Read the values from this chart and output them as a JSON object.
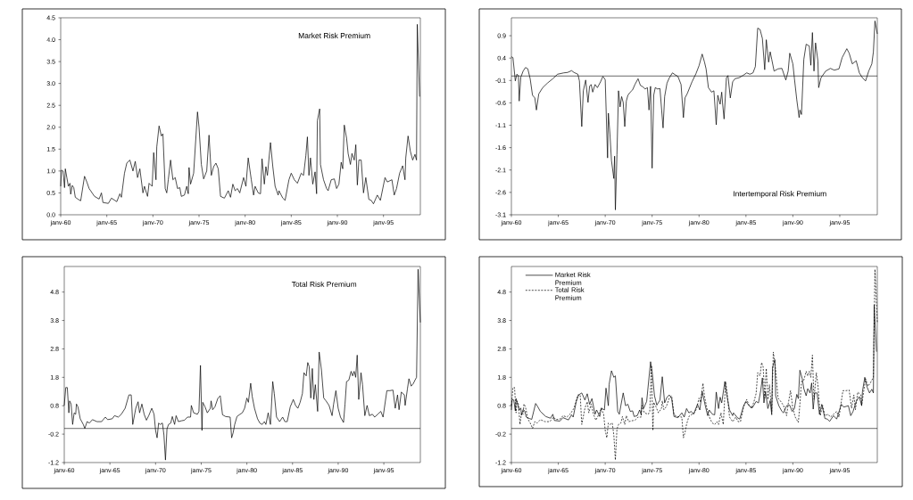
{
  "chart_data": [
    {
      "type": "line",
      "title": "Market Risk Premium",
      "xlim": [
        "1960-01",
        "1999-01"
      ],
      "ylim": [
        0,
        4.5
      ],
      "xticks": [
        {
          "value": "1960-01",
          "label": "janv-60"
        },
        {
          "value": "1965-01",
          "label": "janv-65"
        },
        {
          "value": "1970-01",
          "label": "janv-70"
        },
        {
          "value": "1975-01",
          "label": "janv-75"
        },
        {
          "value": "1980-01",
          "label": "janv-80"
        },
        {
          "value": "1985-01",
          "label": "janv-85"
        },
        {
          "value": "1990-01",
          "label": "janv-90"
        },
        {
          "value": "1995-01",
          "label": "janv-95"
        }
      ],
      "yticks": [
        {
          "value": 0,
          "label": "0.0"
        },
        0.5,
        {
          "value": 1,
          "label": "1.0"
        },
        1.5,
        {
          "value": 2,
          "label": "2.0"
        },
        2.5,
        {
          "value": 3,
          "label": "3.0"
        },
        3.5,
        {
          "value": 4,
          "label": "4.0"
        },
        4.5
      ],
      "series": [
        {
          "color": "#000000",
          "x": [
            "1960-01",
            "1960-02",
            "1960-04",
            "1960-06",
            "1960-07",
            "1960-09",
            "1960-11",
            "1961-01",
            "1961-02",
            "1961-04",
            "1961-06",
            "1961-08",
            "1961-12",
            "1962-03",
            "1962-08",
            "1962-11",
            "1963-02",
            "1963-09",
            "1964-03",
            "1964-06",
            "1964-08",
            "1965-03",
            "1965-07",
            "1966-02",
            "1966-06",
            "1966-08",
            "1966-12",
            "1967-03",
            "1967-07",
            "1967-11",
            "1968-02",
            "1968-05",
            "1968-08",
            "1968-12",
            "1969-02",
            "1969-06",
            "1969-08",
            "1969-12",
            "1970-02",
            "1970-05",
            "1970-06",
            "1970-09",
            "1970-12",
            "1971-02",
            "1971-05",
            "1971-07",
            "1971-09",
            "1971-12",
            "1972-03",
            "1972-06",
            "1972-09",
            "1972-12",
            "1973-02",
            "1973-06",
            "1973-09",
            "1973-11",
            "1973-12",
            "1974-02",
            "1974-06",
            "1974-11",
            "1975-01",
            "1975-04",
            "1975-07",
            "1975-11",
            "1976-02",
            "1976-05",
            "1976-08",
            "1976-11",
            "1977-02",
            "1977-05",
            "1977-10",
            "1978-03",
            "1978-06",
            "1978-09",
            "1978-12",
            "1979-03",
            "1979-06",
            "1979-11",
            "1980-02",
            "1980-05",
            "1980-09",
            "1980-12",
            "1981-02",
            "1981-06",
            "1981-09",
            "1981-11",
            "1982-02",
            "1982-04",
            "1982-06",
            "1982-10",
            "1983-01",
            "1983-04",
            "1983-08",
            "1983-09",
            "1984-02",
            "1984-05",
            "1984-10",
            "1985-01",
            "1985-05",
            "1985-09",
            "1986-02",
            "1986-05",
            "1986-08",
            "1986-10",
            "1986-12",
            "1987-02",
            "1987-05",
            "1987-08",
            "1987-10",
            "1987-11",
            "1988-02",
            "1988-03",
            "1988-07",
            "1988-11",
            "1989-01",
            "1989-05",
            "1989-09",
            "1989-12",
            "1990-03",
            "1990-06",
            "1990-08",
            "1990-10",
            "1991-01",
            "1991-03",
            "1991-06",
            "1991-08",
            "1991-11",
            "1992-01",
            "1992-03",
            "1992-05",
            "1992-08",
            "1992-11",
            "1993-02",
            "1993-06",
            "1993-09",
            "1993-12",
            "1994-05",
            "1994-09",
            "1995-03",
            "1995-06",
            "1995-12",
            "1996-03",
            "1996-06",
            "1996-10",
            "1997-02",
            "1997-05",
            "1997-06",
            "1997-09",
            "1997-12",
            "1998-03",
            "1998-06",
            "1998-08",
            "1998-09",
            "1998-12"
          ],
          "values": [
            0.65,
            1.02,
            1.0,
            0.62,
            1.05,
            0.85,
            0.65,
            0.72,
            0.47,
            0.67,
            0.62,
            0.4,
            0.35,
            0.32,
            0.88,
            0.75,
            0.6,
            0.42,
            0.36,
            0.5,
            0.28,
            0.26,
            0.38,
            0.3,
            0.48,
            0.4,
            0.95,
            1.18,
            1.25,
            1.0,
            1.22,
            0.85,
            1.05,
            0.5,
            0.65,
            0.42,
            0.72,
            0.65,
            1.42,
            0.8,
            1.55,
            2.03,
            1.8,
            1.85,
            0.6,
            0.5,
            0.8,
            1.25,
            0.8,
            0.85,
            0.6,
            0.62,
            0.42,
            0.45,
            0.65,
            0.48,
            1.08,
            0.7,
            0.95,
            2.35,
            2.0,
            1.15,
            0.82,
            1.0,
            1.82,
            0.9,
            1.1,
            1.18,
            1.05,
            0.42,
            0.38,
            0.55,
            0.4,
            0.7,
            0.55,
            0.6,
            0.5,
            0.85,
            0.65,
            1.3,
            0.8,
            0.45,
            0.65,
            0.5,
            0.48,
            1.28,
            0.7,
            1.1,
            0.9,
            1.65,
            1.1,
            0.65,
            0.45,
            0.55,
            0.38,
            0.33,
            0.8,
            0.95,
            0.8,
            0.72,
            0.95,
            0.9,
            1.35,
            1.78,
            0.9,
            1.3,
            0.7,
            0.98,
            0.48,
            2.15,
            2.42,
            1.15,
            0.8,
            0.6,
            0.55,
            0.8,
            0.82,
            0.6,
            0.7,
            1.2,
            1.05,
            2.05,
            1.75,
            1.4,
            1.15,
            1.4,
            1.25,
            1.6,
            0.68,
            1.25,
            1.25,
            0.5,
            0.85,
            0.35,
            0.33,
            0.25,
            0.45,
            0.33,
            0.85,
            0.75,
            0.8,
            0.45,
            0.6,
            0.95,
            1.12,
            0.8,
            1.3,
            1.8,
            1.45,
            1.25,
            1.38,
            1.25,
            4.35,
            2.7
          ]
        }
      ]
    },
    {
      "type": "line",
      "title": "Intertemporal Risk Premium",
      "xlim": [
        "1960-01",
        "1999-01"
      ],
      "ylim": [
        -3.1,
        1.3
      ],
      "xticks": [
        {
          "value": "1960-01",
          "label": "janv-60"
        },
        {
          "value": "1965-01",
          "label": "janv-65"
        },
        {
          "value": "1970-01",
          "label": "janv-70"
        },
        {
          "value": "1975-01",
          "label": "janv-75"
        },
        {
          "value": "1980-01",
          "label": "janv-80"
        },
        {
          "value": "1985-01",
          "label": "janv-85"
        },
        {
          "value": "1990-01",
          "label": "janv-90"
        },
        {
          "value": "1995-01",
          "label": "janv-95"
        }
      ],
      "yticks": [
        -3.1,
        -2.6,
        -2.1,
        -1.6,
        -1.1,
        -0.6,
        -0.1,
        0.4,
        0.9
      ],
      "ref_lines": [
        {
          "axis": "y",
          "value": 0
        }
      ],
      "series": [
        {
          "color": "#000000",
          "x": [
            "1960-01",
            "1960-03",
            "1960-06",
            "1960-08",
            "1960-10",
            "1960-11",
            "1961-01",
            "1961-04",
            "1961-07",
            "1961-10",
            "1962-01",
            "1962-04",
            "1962-07",
            "1962-09",
            "1962-12",
            "1963-05",
            "1963-11",
            "1964-06",
            "1964-12",
            "1965-08",
            "1966-01",
            "1966-06",
            "1966-09",
            "1967-02",
            "1967-04",
            "1967-07",
            "1967-09",
            "1967-12",
            "1968-03",
            "1968-05",
            "1968-07",
            "1968-09",
            "1968-12",
            "1969-03",
            "1969-07",
            "1969-10",
            "1970-01",
            "1970-04",
            "1970-05",
            "1970-07",
            "1970-09",
            "1970-12",
            "1971-01",
            "1971-02",
            "1971-04",
            "1971-06",
            "1971-08",
            "1971-10",
            "1971-12",
            "1972-02",
            "1972-04",
            "1972-06",
            "1972-09",
            "1972-12",
            "1973-03",
            "1973-07",
            "1973-10",
            "1974-01",
            "1974-04",
            "1974-07",
            "1974-09",
            "1974-11",
            "1975-01",
            "1975-03",
            "1975-05",
            "1975-08",
            "1975-11",
            "1976-03",
            "1976-05",
            "1976-08",
            "1976-11",
            "1977-03",
            "1977-07",
            "1977-10",
            "1978-02",
            "1978-05",
            "1978-07",
            "1978-10",
            "1979-04",
            "1979-09",
            "1980-01",
            "1980-05",
            "1980-08",
            "1980-10",
            "1981-01",
            "1981-05",
            "1981-08",
            "1981-11",
            "1982-01",
            "1982-04",
            "1982-06",
            "1982-07",
            "1982-09",
            "1982-12",
            "1983-02",
            "1983-05",
            "1983-08",
            "1983-11",
            "1984-04",
            "1984-09",
            "1985-02",
            "1985-06",
            "1985-10",
            "1986-01",
            "1986-04",
            "1986-07",
            "1986-10",
            "1987-01",
            "1987-03",
            "1987-06",
            "1987-08",
            "1987-10",
            "1988-01",
            "1988-06",
            "1988-11",
            "1989-04",
            "1989-07",
            "1989-09",
            "1990-01",
            "1990-03",
            "1990-06",
            "1990-09",
            "1990-10",
            "1990-12",
            "1991-03",
            "1991-06",
            "1991-10",
            "1991-12",
            "1992-02",
            "1992-04",
            "1992-06",
            "1992-09",
            "1992-10",
            "1993-01",
            "1993-07",
            "1994-01",
            "1994-06",
            "1994-12",
            "1995-04",
            "1995-10",
            "1996-01",
            "1996-05",
            "1996-10",
            "1997-02",
            "1997-06",
            "1997-10",
            "1998-02",
            "1998-06",
            "1998-08",
            "1998-10",
            "1999-01"
          ],
          "values": [
            0.43,
            0.41,
            -0.11,
            0.04,
            0.01,
            -0.56,
            -0.03,
            0.11,
            0.19,
            0.16,
            -0.06,
            -0.43,
            -0.49,
            -0.76,
            -0.4,
            -0.26,
            -0.16,
            -0.06,
            0.04,
            0.07,
            0.08,
            0.12,
            0.08,
            0.04,
            -0.11,
            -1.13,
            -0.33,
            -0.09,
            -0.59,
            -0.23,
            -0.19,
            -0.36,
            -0.19,
            -0.26,
            -0.13,
            -0.01,
            -0.08,
            -1.83,
            -0.83,
            -1.29,
            -1.89,
            -2.29,
            -1.79,
            -2.99,
            -1.76,
            -0.33,
            -0.69,
            -0.46,
            -0.59,
            -1.13,
            -0.56,
            -0.43,
            -0.36,
            -0.31,
            -0.19,
            -0.06,
            -0.21,
            -0.24,
            -0.29,
            -0.26,
            -0.76,
            -0.23,
            -2.06,
            -0.43,
            -0.26,
            -0.29,
            -0.28,
            -1.16,
            -0.46,
            -0.16,
            -0.04,
            0.07,
            0.02,
            -0.01,
            -0.19,
            -0.93,
            -0.49,
            -0.39,
            -0.13,
            0.05,
            0.23,
            0.49,
            0.31,
            0.16,
            -0.26,
            -0.36,
            -0.33,
            -1.09,
            -0.43,
            -0.63,
            -0.36,
            -0.59,
            -0.96,
            -0.04,
            0.01,
            -0.49,
            -0.13,
            -0.06,
            -0.04,
            0.01,
            0.07,
            0.04,
            0.07,
            0.21,
            1.07,
            1.04,
            0.84,
            0.14,
            0.81,
            0.31,
            0.54,
            0.37,
            0.11,
            0.16,
            0.17,
            -0.09,
            0.11,
            0.51,
            0.27,
            -0.06,
            -0.53,
            -0.93,
            -0.76,
            -0.86,
            0.37,
            0.71,
            0.67,
            0.24,
            0.97,
            0.11,
            0.74,
            0.34,
            -0.26,
            -0.04,
            0.11,
            0.17,
            0.13,
            0.16,
            0.41,
            0.61,
            0.51,
            0.27,
            0.34,
            0.07,
            -0.04,
            -0.11,
            0.11,
            0.27,
            0.54,
            1.23,
            0.94
          ]
        }
      ]
    },
    {
      "type": "line",
      "title": "Total Risk Premium",
      "xlim": [
        "1960-01",
        "1999-01"
      ],
      "ylim": [
        -1.2,
        5.7
      ],
      "xticks": [
        {
          "value": "1960-01",
          "label": "janv-60"
        },
        {
          "value": "1965-01",
          "label": "janv-65"
        },
        {
          "value": "1970-01",
          "label": "janv-70"
        },
        {
          "value": "1975-01",
          "label": "janv-75"
        },
        {
          "value": "1980-01",
          "label": "janv-80"
        },
        {
          "value": "1985-01",
          "label": "janv-85"
        },
        {
          "value": "1990-01",
          "label": "janv-90"
        },
        {
          "value": "1995-01",
          "label": "janv-95"
        }
      ],
      "yticks": [
        -1.2,
        -0.2,
        0.8,
        1.8,
        2.8,
        3.8,
        4.8
      ],
      "ref_lines": [
        {
          "axis": "y",
          "value": 0
        }
      ],
      "series": [
        {
          "color": "#000000",
          "x": [
            "1960-01",
            "1960-03",
            "1960-05",
            "1960-07",
            "1960-08",
            "1960-10",
            "1960-12",
            "1961-02",
            "1961-04",
            "1961-05",
            "1961-07",
            "1961-10",
            "1962-02",
            "1962-04",
            "1962-07",
            "1962-10",
            "1963-02",
            "1963-08",
            "1964-02",
            "1964-07",
            "1964-10",
            "1965-04",
            "1965-07",
            "1965-12",
            "1966-04",
            "1966-09",
            "1967-02",
            "1967-05",
            "1967-07",
            "1967-11",
            "1968-02",
            "1968-04",
            "1968-07",
            "1968-10",
            "1969-01",
            "1969-04",
            "1969-08",
            "1969-11",
            "1970-01",
            "1970-03",
            "1970-05",
            "1970-07",
            "1970-10",
            "1970-12",
            "1971-02",
            "1971-04",
            "1971-06",
            "1971-09",
            "1971-11",
            "1972-02",
            "1972-04",
            "1972-07",
            "1972-11",
            "1973-03",
            "1973-07",
            "1973-11",
            "1973-12",
            "1974-03",
            "1974-08",
            "1974-10",
            "1974-12",
            "1975-02",
            "1975-03",
            "1975-06",
            "1975-09",
            "1976-01",
            "1976-02",
            "1976-04",
            "1976-07",
            "1976-11",
            "1977-02",
            "1977-05",
            "1977-09",
            "1978-03",
            "1978-05",
            "1978-07",
            "1978-09",
            "1978-12",
            "1979-04",
            "1979-07",
            "1979-10",
            "1980-01",
            "1980-03",
            "1980-06",
            "1980-08",
            "1980-11",
            "1981-03",
            "1981-06",
            "1981-09",
            "1981-12",
            "1982-02",
            "1982-05",
            "1982-08",
            "1982-11",
            "1983-01",
            "1983-04",
            "1983-08",
            "1983-12",
            "1984-03",
            "1984-06",
            "1984-10",
            "1985-02",
            "1985-05",
            "1985-08",
            "1985-11",
            "1986-02",
            "1986-04",
            "1986-07",
            "1986-09",
            "1986-11",
            "1987-01",
            "1987-03",
            "1987-05",
            "1987-07",
            "1987-10",
            "1987-12",
            "1988-03",
            "1988-06",
            "1988-09",
            "1989-01",
            "1989-05",
            "1989-07",
            "1989-10",
            "1990-01",
            "1990-04",
            "1990-08",
            "1990-10",
            "1990-12",
            "1991-03",
            "1991-06",
            "1991-08",
            "1991-10",
            "1991-12",
            "1992-02",
            "1992-04",
            "1992-07",
            "1992-09",
            "1992-12",
            "1993-03",
            "1993-06",
            "1993-10",
            "1994-01",
            "1994-05",
            "1994-09",
            "1994-12",
            "1995-05",
            "1995-09",
            "1996-01",
            "1996-04",
            "1996-07",
            "1996-09",
            "1996-12",
            "1997-04",
            "1997-05",
            "1997-08",
            "1997-10",
            "1998-01",
            "1998-04",
            "1998-05",
            "1998-08",
            "1998-10",
            "1999-01"
          ],
          "values": [
            0.81,
            1.44,
            1.44,
            0.55,
            0.97,
            0.86,
            0.14,
            0.55,
            0.5,
            0.86,
            0.76,
            0.34,
            0.14,
            0.0,
            0.24,
            0.19,
            0.31,
            0.24,
            0.24,
            0.4,
            0.31,
            0.34,
            0.45,
            0.4,
            0.5,
            0.71,
            1.18,
            1.18,
            0.14,
            0.71,
            0.94,
            0.55,
            0.86,
            0.5,
            0.29,
            0.45,
            0.71,
            0.5,
            -0.07,
            -0.33,
            0.19,
            0.14,
            0.19,
            -0.23,
            -1.11,
            -0.02,
            0.14,
            0.19,
            0.42,
            0.14,
            0.45,
            0.24,
            0.27,
            0.29,
            0.4,
            0.4,
            0.81,
            0.55,
            0.5,
            0.6,
            2.22,
            -0.07,
            0.92,
            0.76,
            0.55,
            0.71,
            0.97,
            0.66,
            0.76,
            1.07,
            1.15,
            0.48,
            0.42,
            0.4,
            -0.33,
            -0.15,
            0.14,
            0.42,
            0.5,
            0.55,
            0.71,
            1.07,
            0.92,
            1.59,
            1.13,
            0.71,
            0.34,
            0.19,
            0.14,
            0.24,
            0.14,
            0.55,
            0.14,
            1.65,
            1.23,
            0.4,
            0.24,
            0.4,
            0.24,
            0.24,
            0.76,
            1.02,
            0.81,
            0.71,
            0.92,
            1.23,
            1.96,
            1.85,
            2.32,
            2.17,
            1.07,
            2.11,
            1.02,
            1.54,
            0.6,
            2.69,
            2.06,
            1.07,
            0.97,
            0.81,
            0.45,
            0.86,
            1.33,
            0.71,
            0.4,
            0.21,
            0.86,
            1.65,
            1.7,
            2.01,
            1.85,
            2.01,
            1.8,
            2.58,
            1.02,
            1.96,
            1.54,
            0.45,
            0.81,
            0.45,
            0.5,
            0.4,
            0.5,
            0.6,
            0.4,
            1.33,
            1.33,
            1.35,
            0.71,
            1.18,
            0.66,
            1.28,
            1.18,
            0.81,
            1.39,
            1.75,
            1.49,
            1.59,
            1.65,
            1.8,
            5.6,
            3.73
          ]
        }
      ]
    },
    {
      "type": "line",
      "xlim": [
        "1960-01",
        "1999-01"
      ],
      "ylim": [
        -1.2,
        5.7
      ],
      "legend": "top left",
      "xticks": [
        {
          "value": "1960-01",
          "label": "janv-60"
        },
        {
          "value": "1965-01",
          "label": "janv-65"
        },
        {
          "value": "1970-01",
          "label": "janv-70"
        },
        {
          "value": "1975-01",
          "label": "janv-75"
        },
        {
          "value": "1980-01",
          "label": "janv-80"
        },
        {
          "value": "1985-01",
          "label": "janv-85"
        },
        {
          "value": "1990-01",
          "label": "janv-90"
        },
        {
          "value": "1995-01",
          "label": "janv-95"
        }
      ],
      "yticks": [
        -1.2,
        -0.2,
        0.8,
        1.8,
        2.8,
        3.8,
        4.8
      ],
      "ref_lines": [
        {
          "axis": "y",
          "value": 0
        }
      ],
      "series": [
        {
          "name": "Market Risk Premium",
          "color": "#000000",
          "line_style": "solid",
          "x": [
            "1960-01",
            "1960-02",
            "1960-04",
            "1960-06",
            "1960-07",
            "1960-09",
            "1960-11",
            "1961-01",
            "1961-02",
            "1961-04",
            "1961-06",
            "1961-08",
            "1961-12",
            "1962-03",
            "1962-08",
            "1962-11",
            "1963-02",
            "1963-09",
            "1964-03",
            "1964-06",
            "1964-08",
            "1965-03",
            "1965-07",
            "1966-02",
            "1966-06",
            "1966-08",
            "1966-12",
            "1967-03",
            "1967-07",
            "1967-11",
            "1968-02",
            "1968-05",
            "1968-08",
            "1968-12",
            "1969-02",
            "1969-06",
            "1969-08",
            "1969-12",
            "1970-02",
            "1970-05",
            "1970-06",
            "1970-09",
            "1970-12",
            "1971-02",
            "1971-05",
            "1971-07",
            "1971-09",
            "1971-12",
            "1972-03",
            "1972-06",
            "1972-09",
            "1972-12",
            "1973-02",
            "1973-06",
            "1973-09",
            "1973-11",
            "1973-12",
            "1974-02",
            "1974-06",
            "1974-11",
            "1975-01",
            "1975-04",
            "1975-07",
            "1975-11",
            "1976-02",
            "1976-05",
            "1976-08",
            "1976-11",
            "1977-02",
            "1977-05",
            "1977-10",
            "1978-03",
            "1978-06",
            "1978-09",
            "1978-12",
            "1979-03",
            "1979-06",
            "1979-11",
            "1980-02",
            "1980-05",
            "1980-09",
            "1980-12",
            "1981-02",
            "1981-06",
            "1981-09",
            "1981-11",
            "1982-02",
            "1982-04",
            "1982-06",
            "1982-10",
            "1983-01",
            "1983-04",
            "1983-08",
            "1983-09",
            "1984-02",
            "1984-05",
            "1984-10",
            "1985-01",
            "1985-05",
            "1985-09",
            "1986-02",
            "1986-05",
            "1986-08",
            "1986-10",
            "1986-12",
            "1987-02",
            "1987-05",
            "1987-08",
            "1987-10",
            "1987-11",
            "1988-02",
            "1988-03",
            "1988-07",
            "1988-11",
            "1989-01",
            "1989-05",
            "1989-09",
            "1989-12",
            "1990-03",
            "1990-06",
            "1990-08",
            "1990-10",
            "1991-01",
            "1991-03",
            "1991-06",
            "1991-08",
            "1991-11",
            "1992-01",
            "1992-03",
            "1992-05",
            "1992-08",
            "1992-11",
            "1993-02",
            "1993-06",
            "1993-09",
            "1993-12",
            "1994-05",
            "1994-09",
            "1995-03",
            "1995-06",
            "1995-12",
            "1996-03",
            "1996-06",
            "1996-10",
            "1997-02",
            "1997-05",
            "1997-06",
            "1997-09",
            "1997-12",
            "1998-03",
            "1998-06",
            "1998-08",
            "1998-09",
            "1998-12"
          ],
          "values": [
            0.65,
            1.02,
            1.0,
            0.62,
            1.05,
            0.85,
            0.65,
            0.72,
            0.47,
            0.67,
            0.62,
            0.4,
            0.35,
            0.32,
            0.88,
            0.75,
            0.6,
            0.42,
            0.36,
            0.5,
            0.28,
            0.26,
            0.38,
            0.3,
            0.48,
            0.4,
            0.95,
            1.18,
            1.25,
            1.0,
            1.22,
            0.85,
            1.05,
            0.5,
            0.65,
            0.42,
            0.72,
            0.65,
            1.42,
            0.8,
            1.55,
            2.03,
            1.8,
            1.85,
            0.6,
            0.5,
            0.8,
            1.25,
            0.8,
            0.85,
            0.6,
            0.62,
            0.42,
            0.45,
            0.65,
            0.48,
            1.08,
            0.7,
            0.95,
            2.35,
            2.0,
            1.15,
            0.82,
            1.0,
            1.82,
            0.9,
            1.1,
            1.18,
            1.05,
            0.42,
            0.38,
            0.55,
            0.4,
            0.7,
            0.55,
            0.6,
            0.5,
            0.85,
            0.65,
            1.3,
            0.8,
            0.45,
            0.65,
            0.5,
            0.48,
            1.28,
            0.7,
            1.1,
            0.9,
            1.65,
            1.1,
            0.65,
            0.45,
            0.55,
            0.38,
            0.33,
            0.8,
            0.95,
            0.8,
            0.72,
            0.95,
            0.9,
            1.35,
            1.78,
            0.9,
            1.3,
            0.7,
            0.98,
            0.48,
            2.15,
            2.42,
            1.15,
            0.8,
            0.6,
            0.55,
            0.8,
            0.82,
            0.6,
            0.7,
            1.2,
            1.05,
            2.05,
            1.75,
            1.4,
            1.15,
            1.4,
            1.25,
            1.6,
            0.68,
            1.25,
            1.25,
            0.5,
            0.85,
            0.35,
            0.33,
            0.25,
            0.45,
            0.33,
            0.85,
            0.75,
            0.8,
            0.45,
            0.6,
            0.95,
            1.12,
            0.8,
            1.3,
            1.8,
            1.45,
            1.25,
            1.38,
            1.25,
            4.35,
            2.7
          ]
        },
        {
          "name": "Total Risk Premium",
          "color": "#000000",
          "line_style": "dashed",
          "x": [
            "1960-01",
            "1960-03",
            "1960-05",
            "1960-07",
            "1960-08",
            "1960-10",
            "1960-12",
            "1961-02",
            "1961-04",
            "1961-05",
            "1961-07",
            "1961-10",
            "1962-02",
            "1962-04",
            "1962-07",
            "1962-10",
            "1963-02",
            "1963-08",
            "1964-02",
            "1964-07",
            "1964-10",
            "1965-04",
            "1965-07",
            "1965-12",
            "1966-04",
            "1966-09",
            "1967-02",
            "1967-05",
            "1967-07",
            "1967-11",
            "1968-02",
            "1968-04",
            "1968-07",
            "1968-10",
            "1969-01",
            "1969-04",
            "1969-08",
            "1969-11",
            "1970-01",
            "1970-03",
            "1970-05",
            "1970-07",
            "1970-10",
            "1970-12",
            "1971-02",
            "1971-04",
            "1971-06",
            "1971-09",
            "1971-11",
            "1972-02",
            "1972-04",
            "1972-07",
            "1972-11",
            "1973-03",
            "1973-07",
            "1973-11",
            "1973-12",
            "1974-03",
            "1974-08",
            "1974-10",
            "1974-12",
            "1975-02",
            "1975-03",
            "1975-06",
            "1975-09",
            "1976-01",
            "1976-02",
            "1976-04",
            "1976-07",
            "1976-11",
            "1977-02",
            "1977-05",
            "1977-09",
            "1978-03",
            "1978-05",
            "1978-07",
            "1978-09",
            "1978-12",
            "1979-04",
            "1979-07",
            "1979-10",
            "1980-01",
            "1980-03",
            "1980-06",
            "1980-08",
            "1980-11",
            "1981-03",
            "1981-06",
            "1981-09",
            "1981-12",
            "1982-02",
            "1982-05",
            "1982-08",
            "1982-11",
            "1983-01",
            "1983-04",
            "1983-08",
            "1983-12",
            "1984-03",
            "1984-06",
            "1984-10",
            "1985-02",
            "1985-05",
            "1985-08",
            "1985-11",
            "1986-02",
            "1986-04",
            "1986-07",
            "1986-09",
            "1986-11",
            "1987-01",
            "1987-03",
            "1987-05",
            "1987-07",
            "1987-10",
            "1987-12",
            "1988-03",
            "1988-06",
            "1988-09",
            "1989-01",
            "1989-05",
            "1989-07",
            "1989-10",
            "1990-01",
            "1990-04",
            "1990-08",
            "1990-10",
            "1990-12",
            "1991-03",
            "1991-06",
            "1991-08",
            "1991-10",
            "1991-12",
            "1992-02",
            "1992-04",
            "1992-07",
            "1992-09",
            "1992-12",
            "1993-03",
            "1993-06",
            "1993-10",
            "1994-01",
            "1994-05",
            "1994-09",
            "1994-12",
            "1995-05",
            "1995-09",
            "1996-01",
            "1996-04",
            "1996-07",
            "1996-09",
            "1996-12",
            "1997-04",
            "1997-05",
            "1997-08",
            "1997-10",
            "1998-01",
            "1998-04",
            "1998-05",
            "1998-08",
            "1998-10",
            "1999-01"
          ],
          "values": [
            0.81,
            1.44,
            1.44,
            0.55,
            0.97,
            0.86,
            0.14,
            0.55,
            0.5,
            0.86,
            0.76,
            0.34,
            0.14,
            0.0,
            0.24,
            0.19,
            0.31,
            0.24,
            0.24,
            0.4,
            0.31,
            0.34,
            0.45,
            0.4,
            0.5,
            0.71,
            1.18,
            1.18,
            0.14,
            0.71,
            0.94,
            0.55,
            0.86,
            0.5,
            0.29,
            0.45,
            0.71,
            0.5,
            -0.07,
            -0.33,
            0.19,
            0.14,
            0.19,
            -0.23,
            -1.11,
            -0.02,
            0.14,
            0.19,
            0.42,
            0.14,
            0.45,
            0.24,
            0.27,
            0.29,
            0.4,
            0.4,
            0.81,
            0.55,
            0.5,
            0.6,
            2.22,
            -0.07,
            0.92,
            0.76,
            0.55,
            0.71,
            0.97,
            0.66,
            0.76,
            1.07,
            1.15,
            0.48,
            0.42,
            0.4,
            -0.33,
            -0.15,
            0.14,
            0.42,
            0.5,
            0.55,
            0.71,
            1.07,
            0.92,
            1.59,
            1.13,
            0.71,
            0.34,
            0.19,
            0.14,
            0.24,
            0.14,
            0.55,
            0.14,
            1.65,
            1.23,
            0.4,
            0.24,
            0.4,
            0.24,
            0.24,
            0.76,
            1.02,
            0.81,
            0.71,
            0.92,
            1.23,
            1.96,
            1.85,
            2.32,
            2.17,
            1.07,
            2.11,
            1.02,
            1.54,
            0.6,
            2.69,
            2.06,
            1.07,
            0.97,
            0.81,
            0.45,
            0.86,
            1.33,
            0.71,
            0.4,
            0.21,
            0.86,
            1.65,
            1.7,
            2.01,
            1.85,
            2.01,
            1.8,
            2.58,
            1.02,
            1.96,
            1.54,
            0.45,
            0.81,
            0.45,
            0.5,
            0.4,
            0.5,
            0.6,
            0.4,
            1.33,
            1.33,
            1.35,
            0.71,
            1.18,
            0.66,
            1.28,
            1.18,
            0.81,
            1.39,
            1.75,
            1.49,
            1.59,
            1.65,
            1.8,
            5.6,
            3.73
          ]
        }
      ]
    }
  ]
}
